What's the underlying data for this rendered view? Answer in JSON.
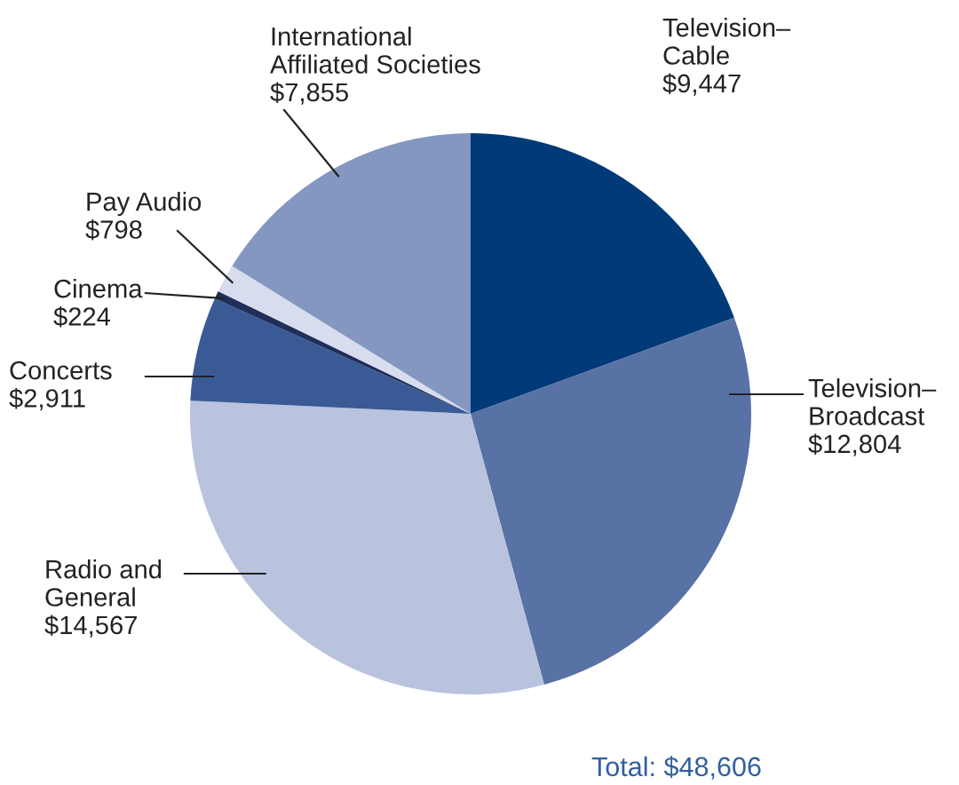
{
  "chart_data": {
    "type": "pie",
    "categories": [
      "Television–\nCable",
      "Television–\nBroadcast",
      "Radio and\nGeneral",
      "Concerts",
      "Cinema",
      "Pay Audio",
      "International\nAffiliated Societies"
    ],
    "values": [
      9447,
      12804,
      14567,
      2911,
      224,
      798,
      7855
    ],
    "value_labels": [
      "$9,447",
      "$12,804",
      "$14,567",
      "$2,911",
      "$224",
      "$798",
      "$7,855"
    ],
    "colors": [
      "#003a78",
      "#5872a6",
      "#b9c3de",
      "#3a5a96",
      "#1f2f5a",
      "#d7dcee",
      "#8497c0"
    ],
    "annotations": [
      "Total: $48,606"
    ]
  }
}
